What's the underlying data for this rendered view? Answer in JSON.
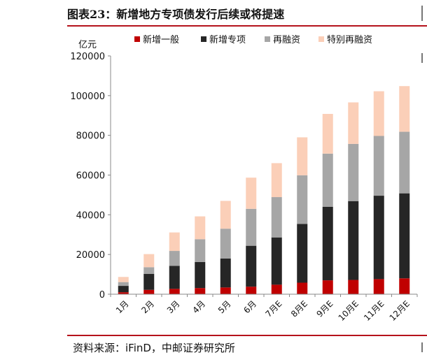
{
  "figure": {
    "title": "图表23：新增地方专项债发行后续或将提速",
    "source": "资料来源：iFinD，中邮证券研究所"
  },
  "chart_data": {
    "type": "bar",
    "stacked": true,
    "ylabel": "亿元",
    "ylim": [
      0,
      120000
    ],
    "yticks": [
      0,
      20000,
      40000,
      60000,
      80000,
      100000,
      120000
    ],
    "categories": [
      "1月",
      "2月",
      "3月",
      "4月",
      "5月",
      "6月",
      "7月E",
      "8月E",
      "9月E",
      "10月E",
      "11月E",
      "12月E"
    ],
    "legend_position": "top",
    "series": [
      {
        "name": "新增一般",
        "color": "#c00000",
        "values": [
          1000,
          2200,
          2700,
          3100,
          3400,
          3800,
          4800,
          5800,
          7000,
          7200,
          7600,
          8000
        ]
      },
      {
        "name": "新增专项",
        "color": "#262626",
        "values": [
          3200,
          8000,
          11600,
          13100,
          14600,
          20600,
          23800,
          29600,
          37000,
          39700,
          42000,
          42800
        ]
      },
      {
        "name": "再融资",
        "color": "#a6a6a6",
        "values": [
          1900,
          3400,
          7500,
          11500,
          15000,
          18600,
          20300,
          24500,
          26800,
          28800,
          30100,
          31000
        ]
      },
      {
        "name": "特别再融资",
        "color": "#fbcfb8",
        "values": [
          2600,
          6600,
          9300,
          11500,
          14000,
          15700,
          17100,
          19100,
          20000,
          20900,
          22500,
          23000
        ]
      }
    ]
  }
}
